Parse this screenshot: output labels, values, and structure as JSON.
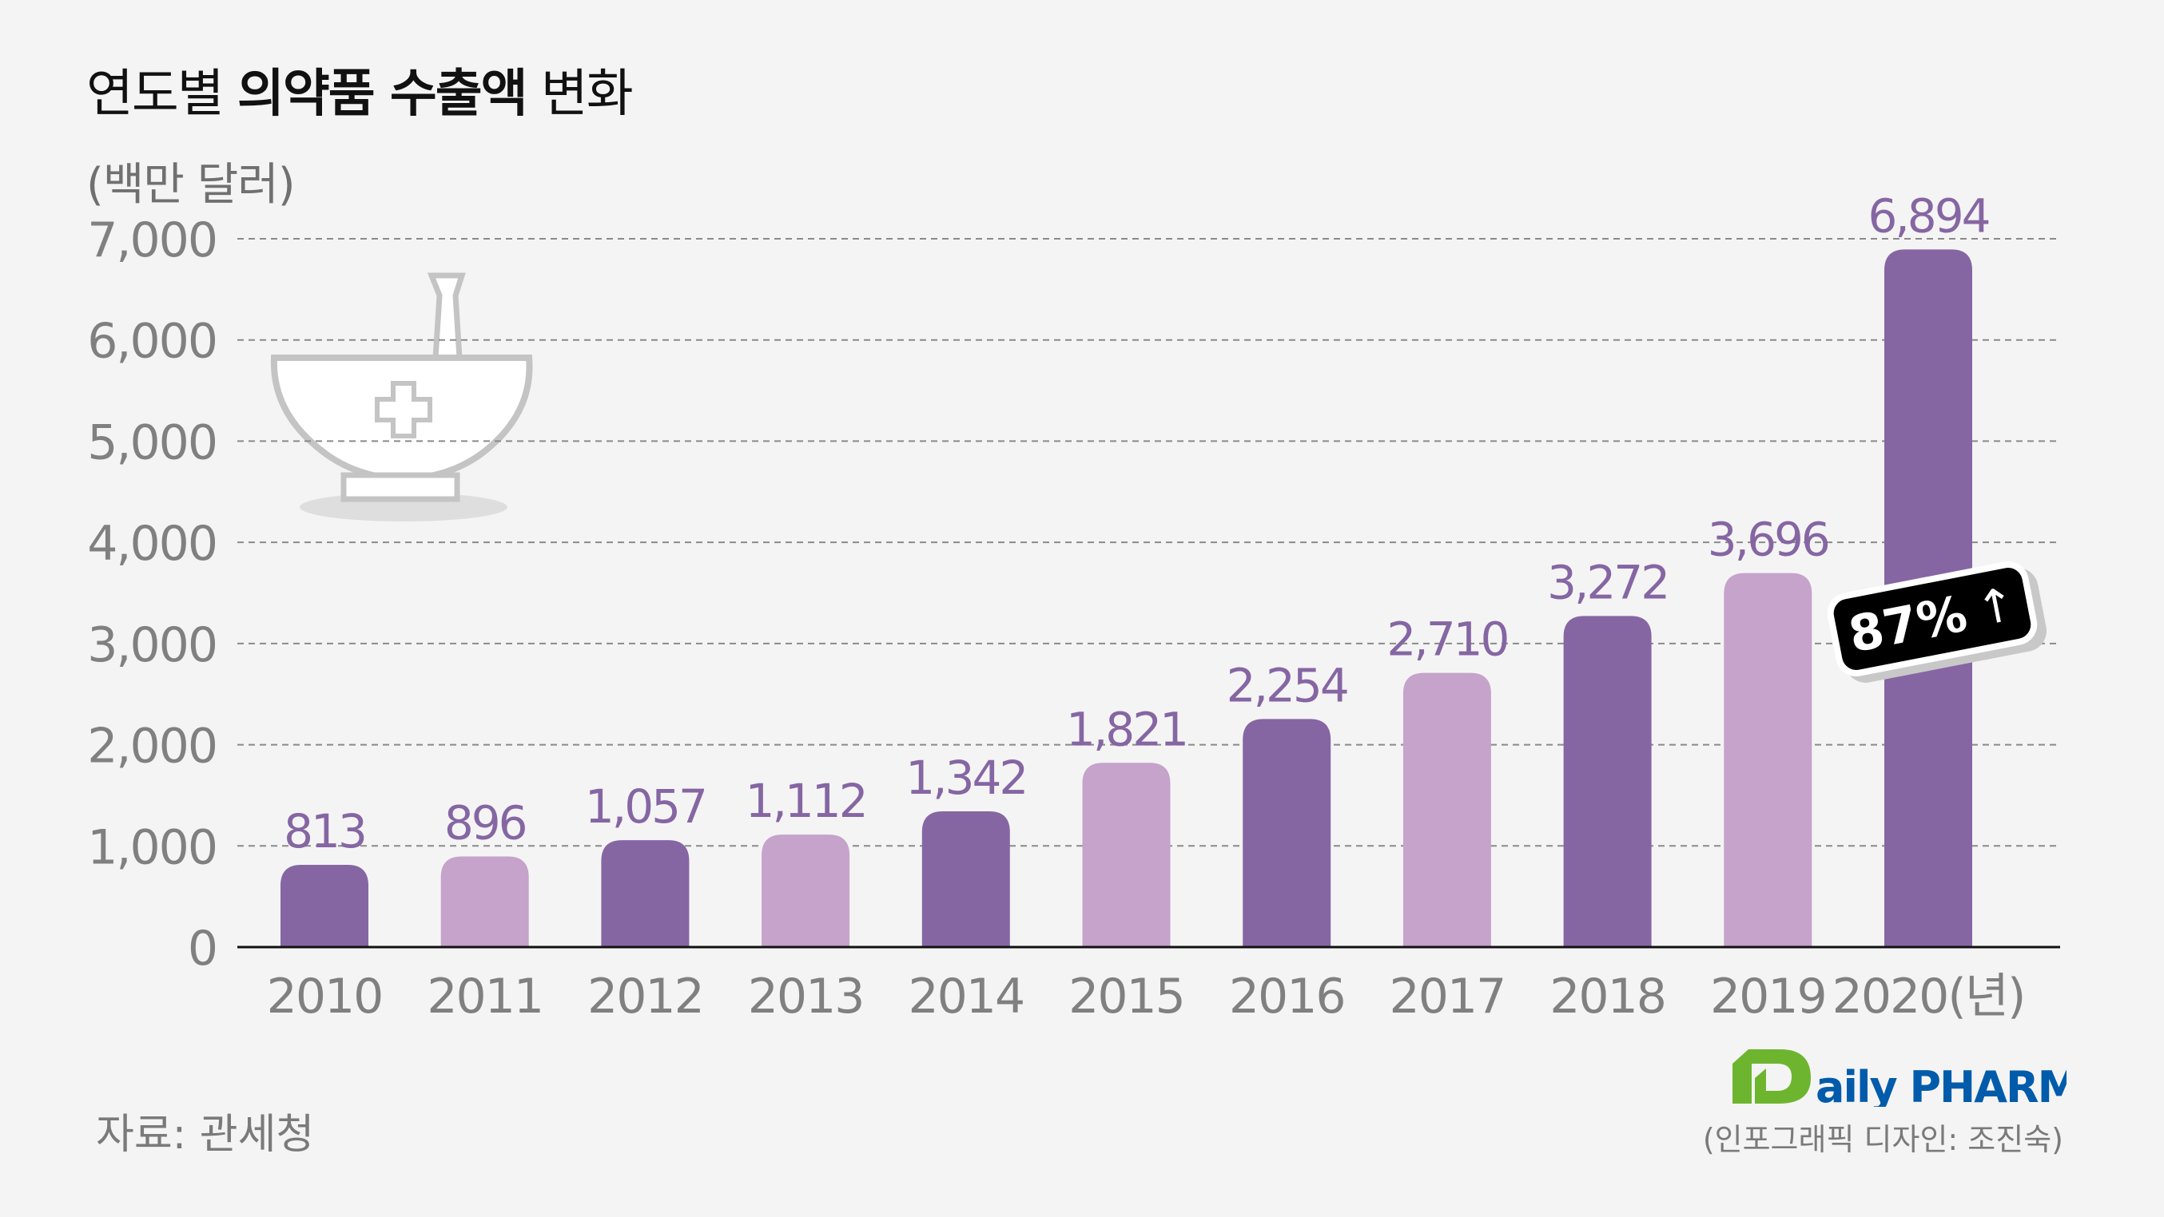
{
  "title": {
    "prefix": "연도별 ",
    "bold": "의약품 수출액",
    "suffix": " 변화"
  },
  "unit_label": "(백만 달러)",
  "badge": {
    "text": "87%",
    "arrow": "↑"
  },
  "source": "자료: 관세청",
  "credit": "(인포그래픽 디자인: 조진숙)",
  "logo": {
    "text_d": "D",
    "text_rest": "aily PHARM",
    "colors": {
      "green": "#6eb52f",
      "blue": "#005bab"
    }
  },
  "icon": "mortar-and-pestle-icon",
  "colors": {
    "dark_bar": "#8566a3",
    "light_bar": "#c5a3cb",
    "value_label": "#8566a3",
    "axis_text": "#808080",
    "background": "#f4f4f4"
  },
  "chart_data": {
    "type": "bar",
    "categories": [
      "2010",
      "2011",
      "2012",
      "2013",
      "2014",
      "2015",
      "2016",
      "2017",
      "2018",
      "2019",
      "2020(년)"
    ],
    "values": [
      813,
      896,
      1057,
      1112,
      1342,
      1821,
      2254,
      2710,
      3272,
      3696,
      6894
    ],
    "value_labels": [
      "813",
      "896",
      "1,057",
      "1,112",
      "1,342",
      "1,821",
      "2,254",
      "2,710",
      "3,272",
      "3,696",
      "6,894"
    ],
    "bar_shades": [
      "dark",
      "light",
      "dark",
      "light",
      "dark",
      "light",
      "dark",
      "light",
      "dark",
      "light",
      "dark"
    ],
    "ylim": [
      0,
      7000
    ],
    "yticks": [
      0,
      1000,
      2000,
      3000,
      4000,
      5000,
      6000,
      7000
    ],
    "ytick_labels": [
      "0",
      "1,000",
      "2,000",
      "3,000",
      "4,000",
      "5,000",
      "6,000",
      "7,000"
    ],
    "ylabel": "(백만 달러)",
    "grid": "horizontal dashed",
    "title": "연도별 의약품 수출액 변화"
  }
}
